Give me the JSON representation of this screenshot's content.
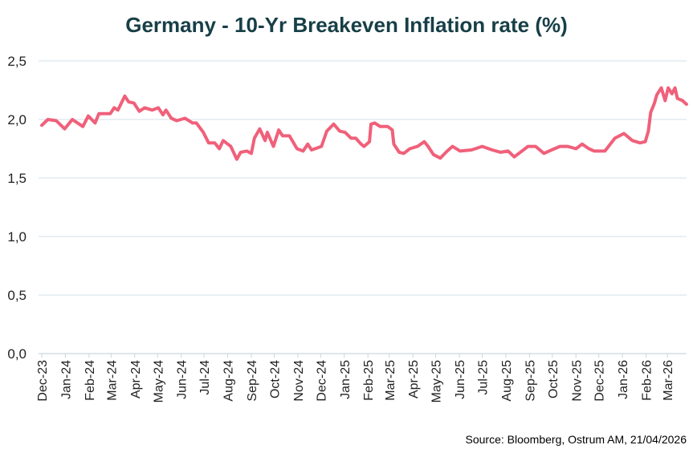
{
  "chart_data": {
    "type": "line",
    "title": "Germany - 10-Yr Breakeven Inflation rate (%)",
    "xlabel": "",
    "ylabel": "",
    "ylim": [
      0,
      2.5
    ],
    "yticks": [
      "0,0",
      "0,5",
      "1,0",
      "1,5",
      "2,0",
      "2,5"
    ],
    "ytick_values": [
      0,
      0.5,
      1.0,
      1.5,
      2.0,
      2.5
    ],
    "xticks": [
      "Dec-23",
      "Jan-24",
      "Feb-24",
      "Mar-24",
      "Apr-24",
      "May-24",
      "Jun-24",
      "Jul-24",
      "Aug-24",
      "Sep-24",
      "Oct-24",
      "Nov-24",
      "Dec-24",
      "Jan-25",
      "Feb-25",
      "Mar-25",
      "Apr-25",
      "May-25",
      "Jun-25",
      "Jul-25",
      "Aug-25",
      "Sep-25",
      "Oct-25",
      "Nov-25",
      "Dec-25",
      "Jan-26",
      "Feb-26",
      "Mar-26"
    ],
    "xtick_dates": [
      "2023-12-01",
      "2024-01-01",
      "2024-02-01",
      "2024-03-01",
      "2024-04-01",
      "2024-05-01",
      "2024-06-01",
      "2024-07-01",
      "2024-08-01",
      "2024-09-01",
      "2024-10-01",
      "2024-11-01",
      "2024-12-01",
      "2025-01-01",
      "2025-02-01",
      "2025-03-01",
      "2025-04-01",
      "2025-05-01",
      "2025-06-01",
      "2025-07-01",
      "2025-08-01",
      "2025-09-01",
      "2025-10-01",
      "2025-11-01",
      "2025-12-01",
      "2026-01-01",
      "2026-02-01",
      "2026-03-01"
    ],
    "grid": "horizontal",
    "legend": "none",
    "line_color": "#f0607a",
    "grid_color": "#dbe8ee",
    "title_color": "#173f47",
    "series": [
      {
        "x": [
          "2023-12-01",
          "2023-12-09",
          "2023-12-20",
          "2023-12-31",
          "2024-01-10",
          "2024-01-24",
          "2024-01-31",
          "2024-02-09",
          "2024-02-14",
          "2024-02-29",
          "2024-03-05",
          "2024-03-10",
          "2024-03-19",
          "2024-03-24",
          "2024-03-31",
          "2024-04-07",
          "2024-04-14",
          "2024-04-24",
          "2024-05-02",
          "2024-05-08",
          "2024-05-12",
          "2024-05-19",
          "2024-05-26",
          "2024-06-06",
          "2024-06-16",
          "2024-06-21",
          "2024-06-30",
          "2024-07-07",
          "2024-07-15",
          "2024-07-21",
          "2024-07-26",
          "2024-08-05",
          "2024-08-13",
          "2024-08-18",
          "2024-08-26",
          "2024-09-01",
          "2024-09-05",
          "2024-09-12",
          "2024-09-19",
          "2024-09-22",
          "2024-09-30",
          "2024-10-07",
          "2024-10-12",
          "2024-10-21",
          "2024-10-31",
          "2024-11-08",
          "2024-11-14",
          "2024-11-19",
          "2024-12-02",
          "2024-12-09",
          "2024-12-18",
          "2024-12-26",
          "2025-01-02",
          "2025-01-10",
          "2025-01-16",
          "2025-01-23",
          "2025-01-27",
          "2025-02-03",
          "2025-02-05",
          "2025-02-10",
          "2025-02-17",
          "2025-02-27",
          "2025-03-05",
          "2025-03-07",
          "2025-03-14",
          "2025-03-20",
          "2025-03-28",
          "2025-04-07",
          "2025-04-16",
          "2025-04-21",
          "2025-04-28",
          "2025-05-07",
          "2025-05-16",
          "2025-05-23",
          "2025-06-02",
          "2025-06-17",
          "2025-07-01",
          "2025-07-14",
          "2025-07-25",
          "2025-08-04",
          "2025-08-12",
          "2025-08-22",
          "2025-08-30",
          "2025-09-09",
          "2025-09-20",
          "2025-09-30",
          "2025-10-11",
          "2025-10-21",
          "2025-11-01",
          "2025-11-09",
          "2025-11-18",
          "2025-11-25",
          "2025-12-09",
          "2025-12-16",
          "2025-12-22",
          "2026-01-03",
          "2026-01-14",
          "2026-01-24",
          "2026-01-31",
          "2026-02-04",
          "2026-02-07",
          "2026-02-12",
          "2026-02-15",
          "2026-02-21",
          "2026-02-26",
          "2026-03-02",
          "2026-03-07",
          "2026-03-11",
          "2026-03-14",
          "2026-03-21",
          "2026-03-26"
        ],
        "y": [
          1.95,
          2.0,
          1.99,
          1.92,
          2.0,
          1.94,
          2.03,
          1.97,
          2.05,
          2.05,
          2.1,
          2.08,
          2.2,
          2.15,
          2.14,
          2.07,
          2.1,
          2.08,
          2.1,
          2.04,
          2.08,
          2.01,
          1.99,
          2.01,
          1.97,
          1.97,
          1.89,
          1.8,
          1.8,
          1.75,
          1.82,
          1.77,
          1.66,
          1.72,
          1.73,
          1.71,
          1.84,
          1.92,
          1.82,
          1.89,
          1.77,
          1.91,
          1.86,
          1.86,
          1.75,
          1.73,
          1.79,
          1.74,
          1.77,
          1.9,
          1.96,
          1.9,
          1.89,
          1.84,
          1.84,
          1.79,
          1.77,
          1.81,
          1.96,
          1.97,
          1.94,
          1.94,
          1.91,
          1.79,
          1.72,
          1.71,
          1.75,
          1.77,
          1.81,
          1.77,
          1.7,
          1.67,
          1.73,
          1.77,
          1.73,
          1.74,
          1.77,
          1.74,
          1.72,
          1.73,
          1.68,
          1.73,
          1.77,
          1.77,
          1.71,
          1.74,
          1.77,
          1.77,
          1.75,
          1.79,
          1.75,
          1.73,
          1.73,
          1.79,
          1.84,
          1.88,
          1.82,
          1.8,
          1.81,
          1.9,
          2.06,
          2.14,
          2.21,
          2.27,
          2.16,
          2.27,
          2.22,
          2.27,
          2.18,
          2.16,
          2.13
        ]
      }
    ]
  },
  "source": "Source: Bloomberg,  Ostrum AM, 21/04/2026"
}
